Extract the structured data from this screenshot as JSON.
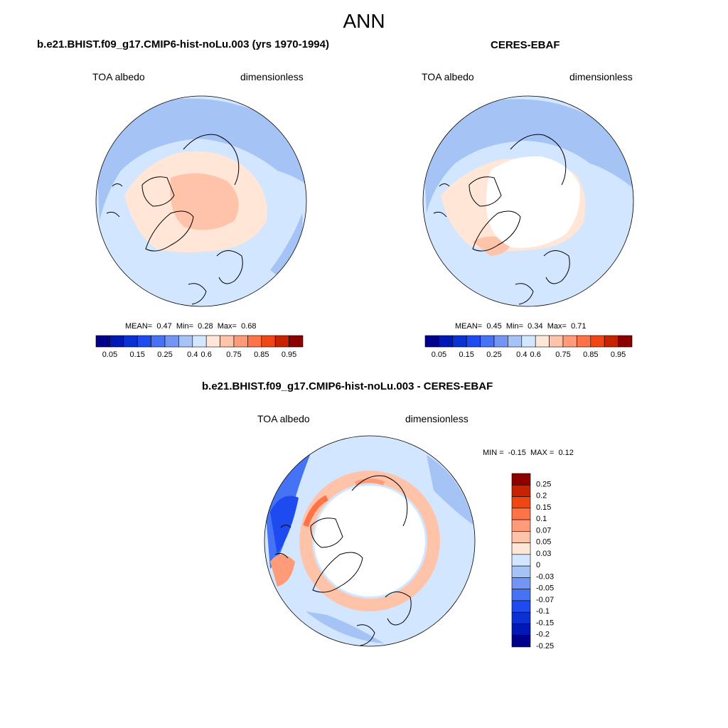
{
  "figure": {
    "title": "ANN"
  },
  "panels": {
    "model": {
      "title": "b.e21.BHIST.f09_g17.CMIP6-hist-noLu.003 (yrs 1970-1994)",
      "variable": "TOA albedo",
      "units": "dimensionless",
      "stats": {
        "mean_label": "MEAN=",
        "mean": "0.47",
        "min_label": "Min=",
        "min": "0.28",
        "max_label": "Max=",
        "max": "0.68"
      }
    },
    "obs": {
      "title": "CERES-EBAF",
      "variable": "TOA albedo",
      "units": "dimensionless",
      "stats": {
        "mean_label": "MEAN=",
        "mean": "0.45",
        "min_label": "Min=",
        "min": "0.34",
        "max_label": "Max=",
        "max": "0.71"
      }
    },
    "diff": {
      "title": "b.e21.BHIST.f09_g17.CMIP6-hist-noLu.003 - CERES-EBAF",
      "variable": "TOA albedo",
      "units": "dimensionless",
      "stats": {
        "min_label": "MIN =",
        "min": "-0.15",
        "max_label": "MAX =",
        "max": "0.12"
      }
    }
  },
  "colorbars": {
    "abs": {
      "colors": [
        "#00008c",
        "#0019b4",
        "#0a32d2",
        "#1e4bf0",
        "#4673f5",
        "#7396f5",
        "#a5c3f5",
        "#d2e6ff",
        "#ffe6d7",
        "#ffc3aa",
        "#ff9b78",
        "#ff7346",
        "#f04614",
        "#c82300",
        "#8c0000"
      ],
      "labels": [
        "0.05",
        "0.15",
        "0.25",
        "0.4",
        "0.6",
        "0.75",
        "0.85",
        "0.95"
      ]
    },
    "diff": {
      "colors": [
        "#8c0000",
        "#c82300",
        "#f04614",
        "#ff7346",
        "#ff9b78",
        "#ffc3aa",
        "#ffe6d7",
        "#d2e6ff",
        "#a5c3f5",
        "#7396f5",
        "#4673f5",
        "#1e4bf0",
        "#0a32d2",
        "#0019b4",
        "#00008c"
      ],
      "labels": [
        "0.25",
        "0.2",
        "0.15",
        "0.1",
        "0.07",
        "0.05",
        "0.03",
        "0",
        "-0.03",
        "-0.05",
        "-0.07",
        "-0.1",
        "-0.15",
        "-0.2",
        "-0.25"
      ]
    }
  }
}
